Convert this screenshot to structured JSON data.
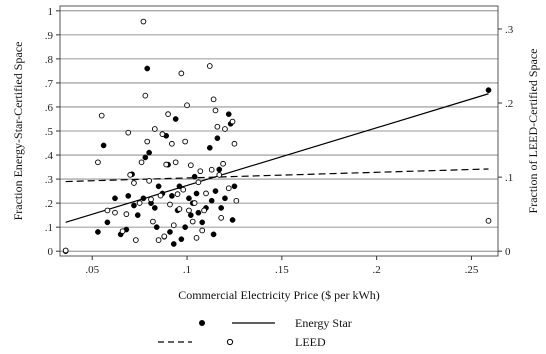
{
  "chart_data": {
    "type": "scatter",
    "xlabel": "Commercial Electricity Price ($ per kWh)",
    "ylabel_left": "Fraction Energy-Star-Certified Space",
    "ylabel_right": "Fraction of LEED-Certified Space",
    "xlim": [
      0.033,
      0.264
    ],
    "ylim_left": [
      -0.02,
      1.02
    ],
    "ylim_right": [
      -0.0065,
      0.331
    ],
    "xticks": [
      0.05,
      0.1,
      0.15,
      0.2,
      0.25
    ],
    "xtick_labels": [
      ".05",
      ".1",
      ".15",
      ".2",
      ".25"
    ],
    "yticks_left": [
      0,
      0.1,
      0.2,
      0.3,
      0.4,
      0.5,
      0.6,
      0.7,
      0.8,
      0.9,
      1
    ],
    "ytick_labels_left": [
      "0",
      ".1",
      ".2",
      ".3",
      ".4",
      ".5",
      ".6",
      ".7",
      ".8",
      ".9",
      "1"
    ],
    "yticks_right": [
      0,
      0.1,
      0.2,
      0.3
    ],
    "ytick_labels_right": [
      "0",
      ".1",
      ".2",
      ".3"
    ],
    "grid": "horizontal",
    "legend_position": "bottom",
    "series": [
      {
        "name": "Energy Star",
        "marker": "filled-circle",
        "axis": "left",
        "points": [
          [
            0.036,
            0.0
          ],
          [
            0.053,
            0.08
          ],
          [
            0.056,
            0.44
          ],
          [
            0.058,
            0.12
          ],
          [
            0.062,
            0.22
          ],
          [
            0.065,
            0.07
          ],
          [
            0.068,
            0.09
          ],
          [
            0.069,
            0.23
          ],
          [
            0.071,
            0.32
          ],
          [
            0.072,
            0.19
          ],
          [
            0.074,
            0.15
          ],
          [
            0.077,
            0.22
          ],
          [
            0.078,
            0.39
          ],
          [
            0.079,
            0.76
          ],
          [
            0.08,
            0.41
          ],
          [
            0.081,
            0.2
          ],
          [
            0.083,
            0.18
          ],
          [
            0.084,
            0.1
          ],
          [
            0.085,
            0.27
          ],
          [
            0.087,
            0.24
          ],
          [
            0.088,
            0.06
          ],
          [
            0.089,
            0.48
          ],
          [
            0.09,
            0.36
          ],
          [
            0.091,
            0.08
          ],
          [
            0.092,
            0.23
          ],
          [
            0.093,
            0.03
          ],
          [
            0.094,
            0.55
          ],
          [
            0.095,
            0.17
          ],
          [
            0.096,
            0.27
          ],
          [
            0.097,
            0.05
          ],
          [
            0.099,
            0.1
          ],
          [
            0.101,
            0.22
          ],
          [
            0.102,
            0.15
          ],
          [
            0.103,
            0.2
          ],
          [
            0.104,
            0.31
          ],
          [
            0.105,
            0.24
          ],
          [
            0.106,
            0.16
          ],
          [
            0.108,
            0.12
          ],
          [
            0.11,
            0.18
          ],
          [
            0.112,
            0.43
          ],
          [
            0.113,
            0.21
          ],
          [
            0.114,
            0.07
          ],
          [
            0.115,
            0.25
          ],
          [
            0.116,
            0.47
          ],
          [
            0.117,
            0.34
          ],
          [
            0.118,
            0.18
          ],
          [
            0.12,
            0.22
          ],
          [
            0.122,
            0.57
          ],
          [
            0.123,
            0.53
          ],
          [
            0.124,
            0.13
          ],
          [
            0.125,
            0.27
          ],
          [
            0.259,
            0.67
          ]
        ]
      },
      {
        "name": "LEED",
        "marker": "hollow-circle",
        "axis": "right",
        "points": [
          [
            0.036,
            0.001
          ],
          [
            0.053,
            0.12
          ],
          [
            0.055,
            0.183
          ],
          [
            0.058,
            0.055
          ],
          [
            0.062,
            0.052
          ],
          [
            0.066,
            0.027
          ],
          [
            0.068,
            0.05
          ],
          [
            0.069,
            0.16
          ],
          [
            0.07,
            0.103
          ],
          [
            0.072,
            0.092
          ],
          [
            0.073,
            0.015
          ],
          [
            0.075,
            0.065
          ],
          [
            0.076,
            0.12
          ],
          [
            0.077,
            0.31
          ],
          [
            0.078,
            0.21
          ],
          [
            0.079,
            0.148
          ],
          [
            0.08,
            0.095
          ],
          [
            0.081,
            0.07
          ],
          [
            0.082,
            0.04
          ],
          [
            0.083,
            0.165
          ],
          [
            0.085,
            0.015
          ],
          [
            0.086,
            0.075
          ],
          [
            0.087,
            0.158
          ],
          [
            0.088,
            0.02
          ],
          [
            0.089,
            0.117
          ],
          [
            0.09,
            0.185
          ],
          [
            0.091,
            0.063
          ],
          [
            0.092,
            0.145
          ],
          [
            0.093,
            0.035
          ],
          [
            0.094,
            0.12
          ],
          [
            0.095,
            0.077
          ],
          [
            0.096,
            0.057
          ],
          [
            0.097,
            0.24
          ],
          [
            0.098,
            0.083
          ],
          [
            0.099,
            0.148
          ],
          [
            0.1,
            0.197
          ],
          [
            0.101,
            0.055
          ],
          [
            0.102,
            0.116
          ],
          [
            0.103,
            0.04
          ],
          [
            0.104,
            0.065
          ],
          [
            0.105,
            0.018
          ],
          [
            0.106,
            0.093
          ],
          [
            0.107,
            0.108
          ],
          [
            0.108,
            0.028
          ],
          [
            0.109,
            0.055
          ],
          [
            0.11,
            0.078
          ],
          [
            0.112,
            0.25
          ],
          [
            0.113,
            0.11
          ],
          [
            0.114,
            0.205
          ],
          [
            0.115,
            0.19
          ],
          [
            0.116,
            0.168
          ],
          [
            0.117,
            0.103
          ],
          [
            0.118,
            0.045
          ],
          [
            0.119,
            0.118
          ],
          [
            0.12,
            0.165
          ],
          [
            0.122,
            0.085
          ],
          [
            0.124,
            0.175
          ],
          [
            0.125,
            0.145
          ],
          [
            0.126,
            0.068
          ],
          [
            0.259,
            0.041
          ]
        ]
      }
    ],
    "fit_lines": [
      {
        "name": "Energy Star",
        "style": "solid",
        "axis": "left",
        "points": [
          [
            0.036,
            0.12
          ],
          [
            0.259,
            0.655
          ]
        ]
      },
      {
        "name": "LEED",
        "style": "dashed",
        "axis": "right",
        "points": [
          [
            0.036,
            0.094
          ],
          [
            0.259,
            0.111
          ]
        ]
      }
    ]
  },
  "legend": {
    "entries": [
      {
        "name": "Energy Star",
        "marker": "filled-circle",
        "line": "solid"
      },
      {
        "name": "LEED",
        "marker": "hollow-circle",
        "line": "dashed"
      }
    ]
  }
}
